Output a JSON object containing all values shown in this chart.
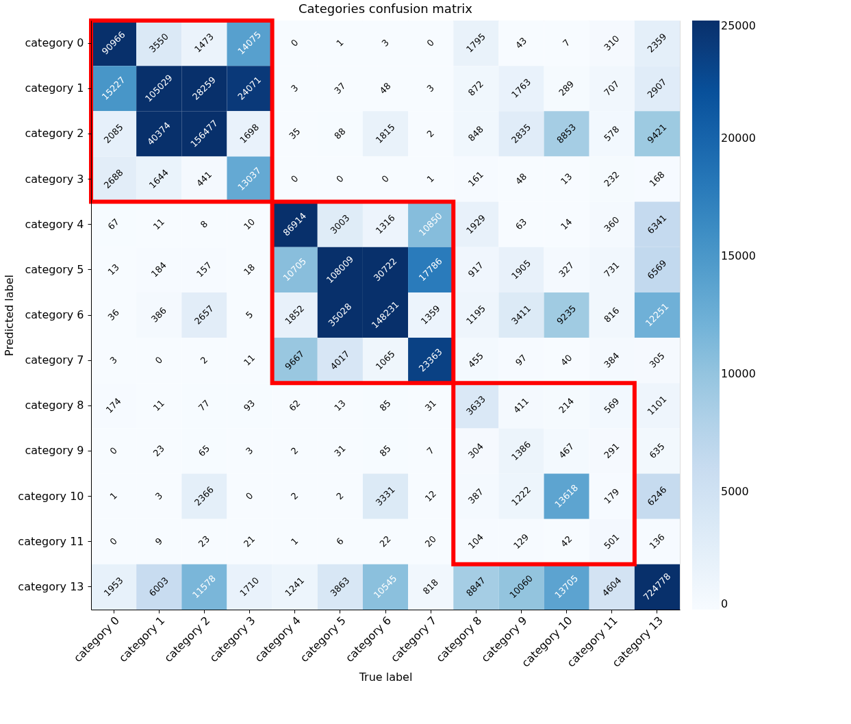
{
  "chart_data": {
    "type": "heatmap",
    "title": "Categories confusion matrix",
    "xlabel": "True label",
    "ylabel": "Predicted label",
    "categories": [
      "category 0",
      "category 1",
      "category 2",
      "category 3",
      "category 4",
      "category 5",
      "category 6",
      "category 7",
      "category 8",
      "category 9",
      "category 10",
      "category 11",
      "category 13"
    ],
    "y_categories": [
      "category 0",
      "category 1",
      "category 2",
      "category 3",
      "category 4",
      "category 5",
      "category 6",
      "category 7",
      "category 8",
      "category 9",
      "category 10",
      "category 11",
      "category 13"
    ],
    "cells": [
      [
        90966,
        3550,
        1473,
        14075,
        0,
        1,
        3,
        0,
        1795,
        43,
        7,
        310,
        2359
      ],
      [
        15227,
        105029,
        28259,
        24071,
        3,
        37,
        48,
        3,
        872,
        1763,
        289,
        707,
        2907
      ],
      [
        2085,
        40374,
        156477,
        1698,
        35,
        88,
        1815,
        2,
        848,
        2835,
        8853,
        578,
        9421
      ],
      [
        2688,
        1644,
        441,
        13037,
        0,
        0,
        0,
        1,
        161,
        48,
        13,
        232,
        168
      ],
      [
        67,
        11,
        8,
        10,
        86914,
        3003,
        1316,
        10850,
        1929,
        63,
        14,
        360,
        6341
      ],
      [
        13,
        184,
        157,
        18,
        10705,
        108009,
        30722,
        17786,
        917,
        1905,
        327,
        731,
        6569
      ],
      [
        36,
        386,
        2657,
        5,
        1852,
        35028,
        148231,
        1359,
        1195,
        3411,
        9235,
        816,
        12251
      ],
      [
        3,
        0,
        2,
        11,
        9667,
        4017,
        1065,
        23363,
        455,
        97,
        40,
        384,
        305
      ],
      [
        174,
        11,
        77,
        93,
        62,
        13,
        85,
        31,
        3633,
        411,
        214,
        569,
        1101
      ],
      [
        0,
        23,
        65,
        3,
        2,
        31,
        85,
        7,
        304,
        1386,
        467,
        291,
        635
      ],
      [
        1,
        3,
        2366,
        0,
        2,
        2,
        3331,
        12,
        387,
        1222,
        13618,
        179,
        6246
      ],
      [
        0,
        9,
        23,
        21,
        1,
        6,
        22,
        20,
        104,
        129,
        42,
        501,
        136
      ],
      [
        1953,
        6003,
        11578,
        1710,
        1241,
        3863,
        10545,
        818,
        8847,
        10060,
        13705,
        4604,
        724778
      ]
    ],
    "clim": [
      0,
      25000
    ],
    "cticks": [
      0,
      5000,
      10000,
      15000,
      20000,
      25000
    ],
    "data_labels": true,
    "grid": false
  }
}
